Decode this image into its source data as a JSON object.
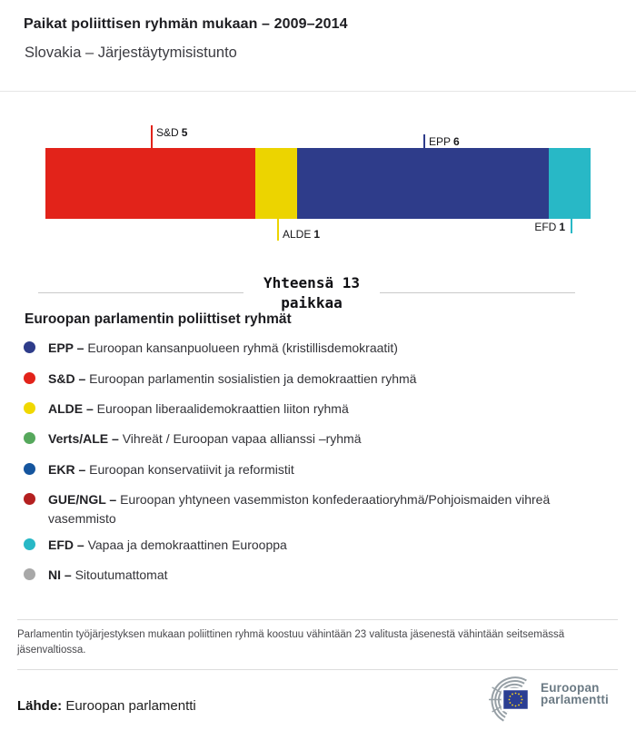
{
  "header": {
    "title": "Paikat poliittisen ryhmän mukaan – 2009–2014",
    "subtitle": "Slovakia – Järjestäytymisistunto"
  },
  "chart_data": {
    "type": "bar",
    "subtype": "stacked-horizontal-proportional",
    "title": "Paikat poliittisen ryhmän mukaan – 2009–2014",
    "subtitle": "Slovakia – Järjestäytymisistunto",
    "unit": "seats",
    "total_seats": 13,
    "total_label_line1": "Yhteensä 13",
    "total_label_line2": "paikkaa",
    "series": [
      {
        "name": "S&D",
        "value": 5,
        "color": "#e2231a",
        "label_side": "above"
      },
      {
        "name": "ALDE",
        "value": 1,
        "color": "#ecd400",
        "label_side": "below"
      },
      {
        "name": "EPP",
        "value": 6,
        "color": "#2e3c8a",
        "label_side": "above"
      },
      {
        "name": "EFD",
        "value": 1,
        "color": "#28b8c6",
        "label_side": "below"
      }
    ],
    "legend_position": "bottom"
  },
  "legend": {
    "heading": "Euroopan parlamentin poliittiset ryhmät",
    "items": [
      {
        "abbr": "EPP",
        "desc": "Euroopan kansanpuolueen ryhmä (kristillisdemokraatit)",
        "color": "#2e3c8a"
      },
      {
        "abbr": "S&D",
        "desc": "Euroopan parlamentin sosialistien ja demokraattien ryhmä",
        "color": "#e2231a"
      },
      {
        "abbr": "ALDE",
        "desc": "Euroopan liberaalidemokraattien liiton ryhmä",
        "color": "#f0d800"
      },
      {
        "abbr": "Verts/ALE",
        "desc": "Vihreät / Euroopan vapaa allianssi –ryhmä",
        "color": "#56a85c"
      },
      {
        "abbr": "EKR",
        "desc": "Euroopan konservatiivit ja reformistit",
        "color": "#15559e"
      },
      {
        "abbr": "GUE/NGL",
        "desc": "Euroopan yhtyneen vasemmiston konfederaatioryhmä/Pohjoismaiden vihreä vasemmisto",
        "color": "#b42020"
      },
      {
        "abbr": "EFD",
        "desc": "Vapaa ja demokraattinen Eurooppa",
        "color": "#28b8c6"
      },
      {
        "abbr": "NI",
        "desc": "Sitoutumattomat",
        "color": "#a8a8a8"
      }
    ]
  },
  "footer": {
    "note": "Parlamentin työjärjestyksen mukaan poliittinen ryhmä koostuu vähintään 23 valitusta jäsenestä vähintään seitsemässä jäsenvaltiossa.",
    "source_label": "Lähde:",
    "source_value": " Euroopan parlamentti",
    "logo_line1": "Euroopan",
    "logo_line2": "parlamentti"
  },
  "icons": {
    "logo": "ep-hemicycle-icon",
    "flag": "eu-flag-icon"
  },
  "colors": {
    "epp": "#2e3c8a",
    "sd": "#e2231a",
    "alde": "#ecd400",
    "verts_ale": "#56a85c",
    "ekr": "#15559e",
    "gue_ngl": "#b42020",
    "efd": "#28b8c6",
    "ni": "#a8a8a8",
    "divider": "#c9c9c9",
    "logo_text": "#6b7a84",
    "eu_flag_blue": "#2b3e93",
    "eu_star_yellow": "#ffd617"
  }
}
